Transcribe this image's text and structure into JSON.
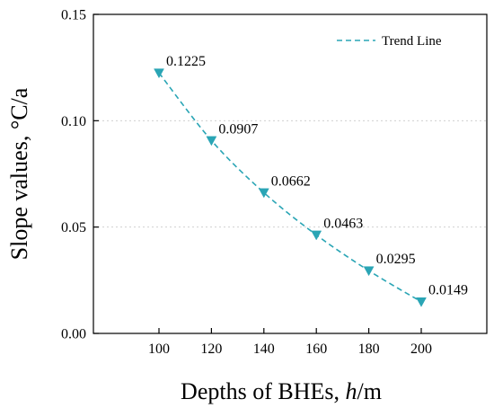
{
  "chart_data": {
    "type": "line",
    "title": "",
    "xlabel_prefix": "Depths of BHEs, ",
    "xlabel_var": "h",
    "xlabel_unit": "/m",
    "ylabel": "Slope values, °C/a",
    "xlim": [
      75,
      225
    ],
    "ylim": [
      0,
      0.15
    ],
    "x_ticks": [
      100,
      120,
      140,
      160,
      180,
      200
    ],
    "x_tick_labels": [
      "100",
      "120",
      "140",
      "160",
      "180",
      "200"
    ],
    "y_ticks": [
      0,
      0.05,
      0.1,
      0.15
    ],
    "y_tick_labels": [
      "0.00",
      "0.05",
      "0.10",
      "0.15"
    ],
    "grid": "horizontal dotted",
    "legend_position": "top-right",
    "series": [
      {
        "name": "Trend Line",
        "style": "dashed line with downward-triangle markers",
        "color": "#2aa5b5",
        "x": [
          100,
          120,
          140,
          160,
          180,
          200
        ],
        "y": [
          0.1225,
          0.0907,
          0.0662,
          0.0463,
          0.0295,
          0.0149
        ]
      }
    ],
    "data_labels": [
      "0.1225",
      "0.0907",
      "0.0662",
      "0.0463",
      "0.0295",
      "0.0149"
    ]
  }
}
